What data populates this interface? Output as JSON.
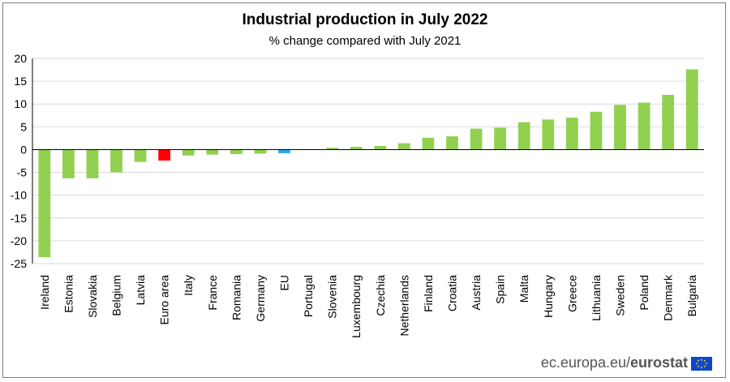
{
  "chart_data": {
    "type": "bar",
    "title": "Industrial production in July 2022",
    "subtitle": "% change compared with July 2021",
    "xlabel": "",
    "ylabel": "",
    "ylim": [
      -25,
      20
    ],
    "yticks": [
      20,
      15,
      10,
      5,
      0,
      -5,
      -10,
      -15,
      -20,
      -25
    ],
    "grid": true,
    "categories": [
      "Ireland",
      "Estonia",
      "Slovakia",
      "Belgium",
      "Latvia",
      "Euro area",
      "Italy",
      "France",
      "Romania",
      "Germany",
      "EU",
      "Portugal",
      "Slovenia",
      "Luxembourg",
      "Czechia",
      "Netherlands",
      "Finland",
      "Croatia",
      "Austria",
      "Spain",
      "Malta",
      "Hungary",
      "Greece",
      "Lithuania",
      "Sweden",
      "Poland",
      "Denmark",
      "Bulgaria"
    ],
    "values": [
      -23.6,
      -6.3,
      -6.3,
      -5.0,
      -2.7,
      -2.4,
      -1.3,
      -1.1,
      -1.0,
      -0.9,
      -0.8,
      0.0,
      0.4,
      0.6,
      0.8,
      1.4,
      2.6,
      2.9,
      4.6,
      4.8,
      6.0,
      6.6,
      7.0,
      8.3,
      9.8,
      10.3,
      12.0,
      17.6
    ],
    "colors": {
      "default": "#92d050",
      "Euro area": "#ff0000",
      "EU": "#2fa8f0"
    }
  },
  "footer": {
    "site": "ec.europa.eu/",
    "brand": "eurostat"
  }
}
